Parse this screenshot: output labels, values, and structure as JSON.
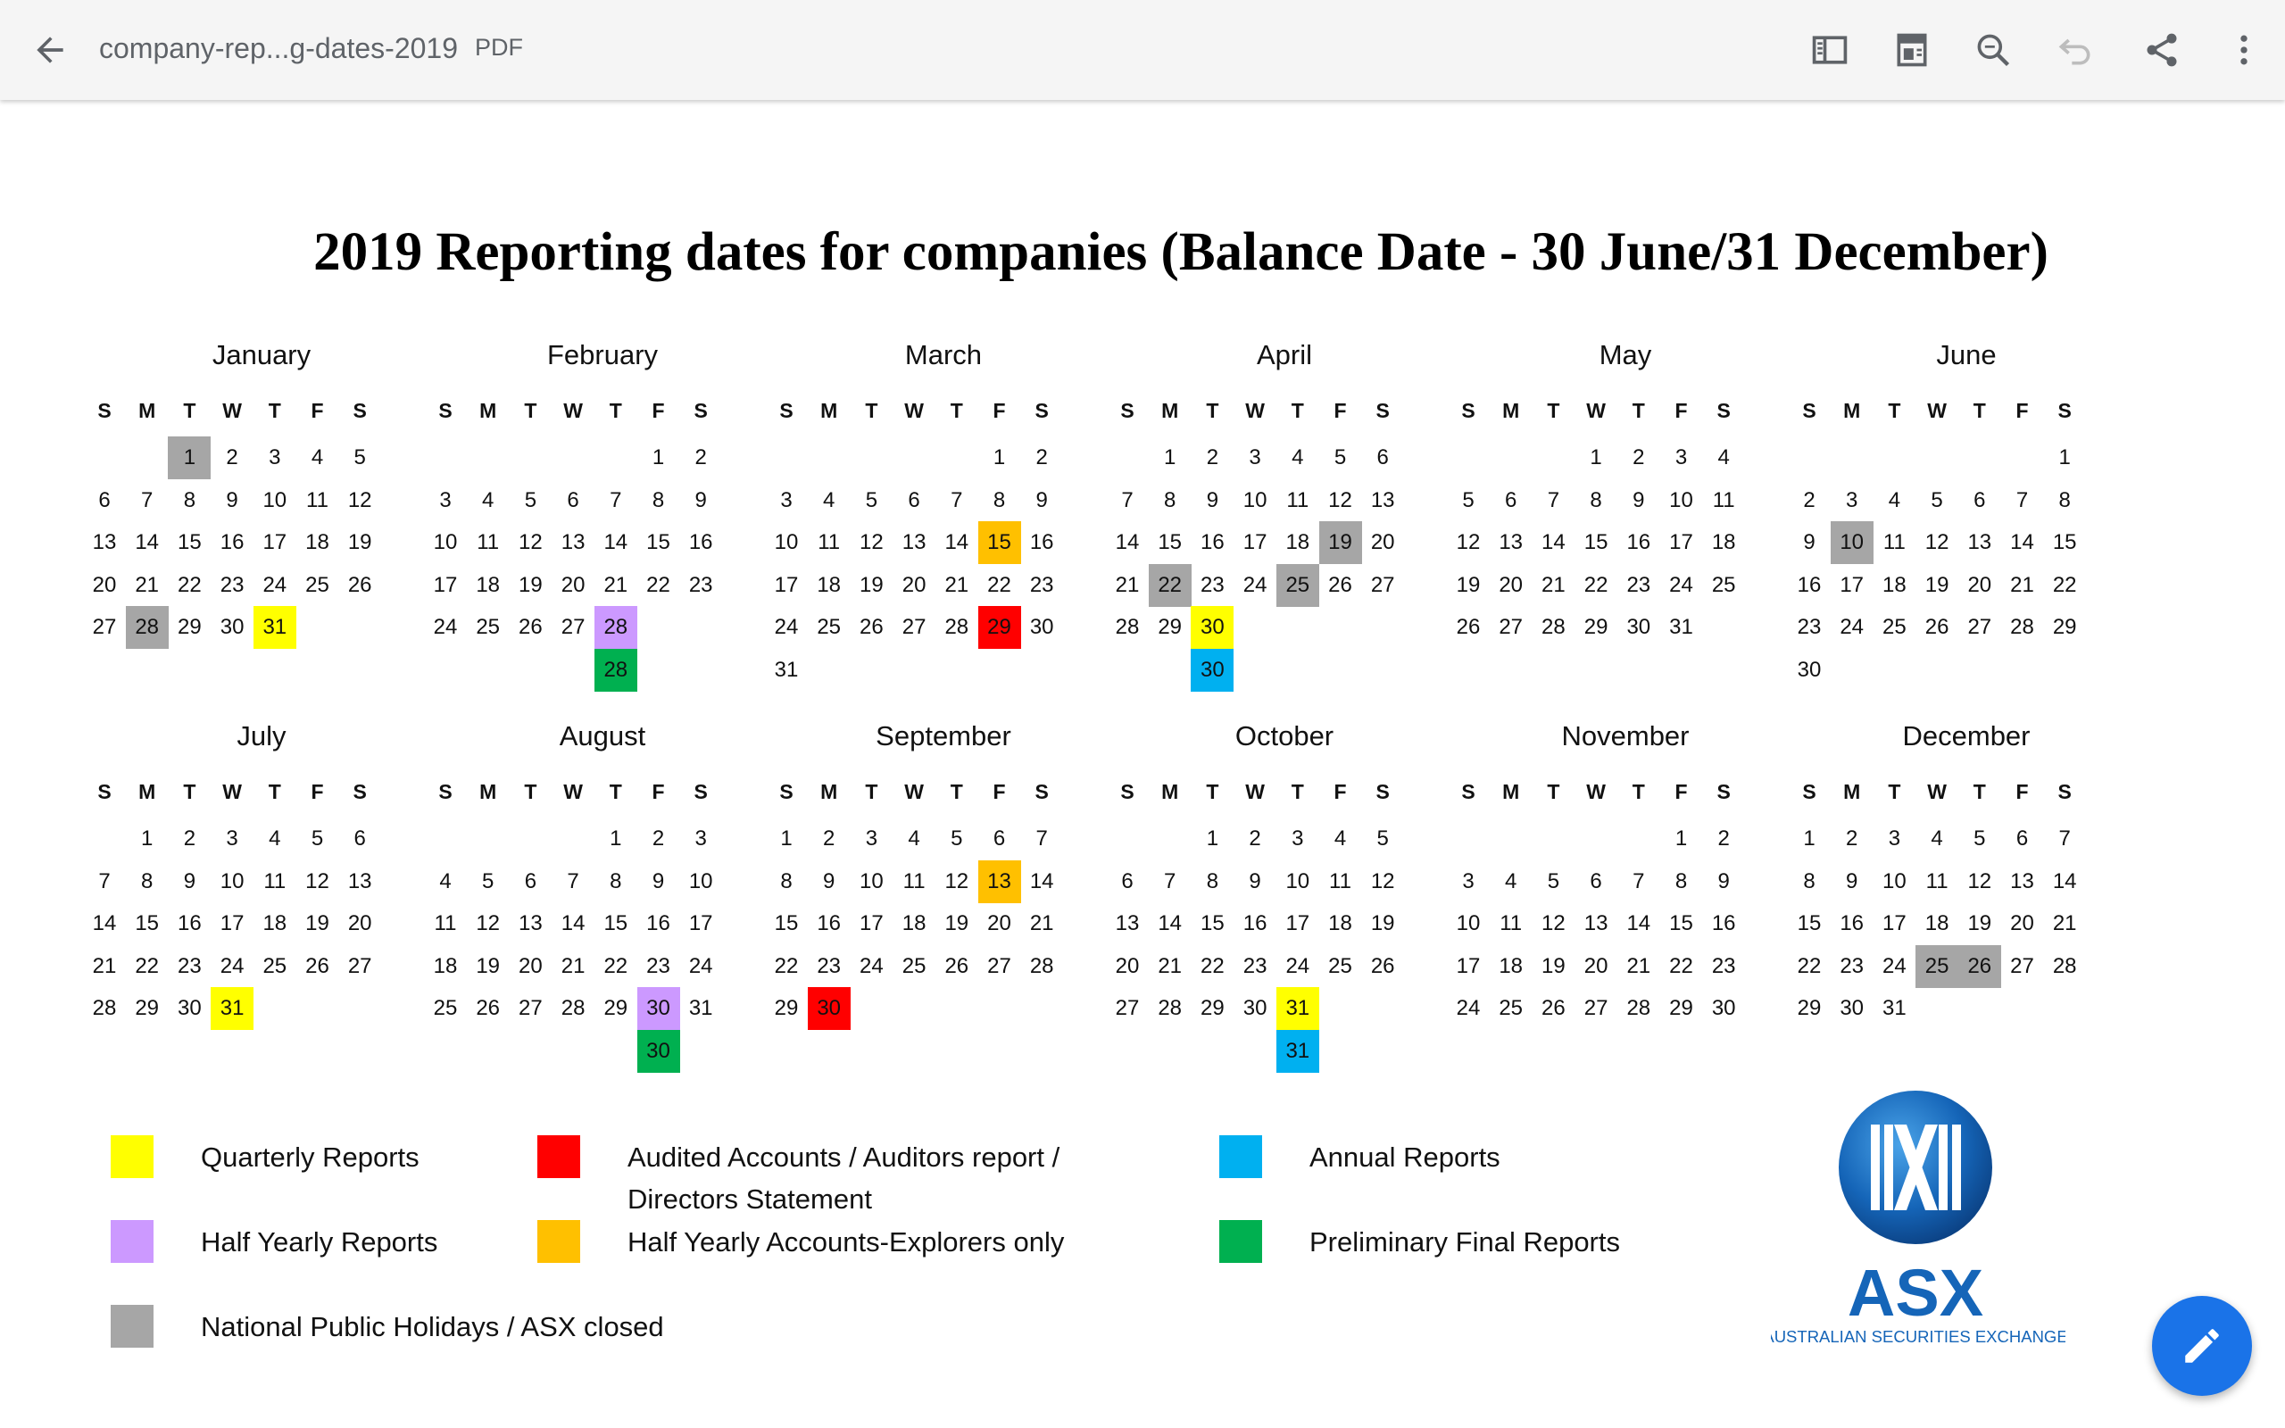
{
  "toolbar": {
    "doc_title": "company-rep...g-dates-2019",
    "doc_type": "PDF",
    "icons": [
      "back-arrow-icon",
      "sidebar-icon",
      "reading-mode-icon",
      "search-icon",
      "undo-icon",
      "share-icon",
      "more-options-icon"
    ]
  },
  "page_title": "2019 Reporting dates for companies (Balance Date - 30 June/31 December)",
  "weekdays": [
    "S",
    "M",
    "T",
    "W",
    "T",
    "F",
    "S"
  ],
  "colors": {
    "quarterly": "#ffff00",
    "half_yearly": "#cc99ff",
    "holiday": "#a6a6a6",
    "audited": "#ff0000",
    "explorers": "#ffc000",
    "annual": "#00b0f0",
    "preliminary": "#00b050"
  },
  "months": [
    {
      "name": "January",
      "start": 2,
      "days": 31,
      "marks": {
        "1": "holiday",
        "28": "holiday",
        "31": "quarterly"
      },
      "extra": []
    },
    {
      "name": "February",
      "start": 5,
      "days": 28,
      "marks": {
        "28": "half_yearly"
      },
      "extra": [
        {
          "day": 28,
          "type": "preliminary"
        }
      ]
    },
    {
      "name": "March",
      "start": 5,
      "days": 31,
      "marks": {
        "15": "explorers",
        "29": "audited"
      },
      "extra": []
    },
    {
      "name": "April",
      "start": 1,
      "days": 30,
      "marks": {
        "19": "holiday",
        "22": "holiday",
        "25": "holiday",
        "30": "quarterly"
      },
      "extra": [
        {
          "day": 30,
          "type": "annual"
        }
      ]
    },
    {
      "name": "May",
      "start": 3,
      "days": 31,
      "marks": {},
      "extra": []
    },
    {
      "name": "June",
      "start": 6,
      "days": 30,
      "marks": {
        "10": "holiday"
      },
      "extra": []
    },
    {
      "name": "July",
      "start": 1,
      "days": 31,
      "marks": {
        "31": "quarterly"
      },
      "extra": []
    },
    {
      "name": "August",
      "start": 4,
      "days": 31,
      "marks": {
        "30": "half_yearly"
      },
      "extra": [
        {
          "day": 30,
          "type": "preliminary"
        }
      ]
    },
    {
      "name": "September",
      "start": 0,
      "days": 30,
      "marks": {
        "13": "explorers",
        "30": "audited"
      },
      "extra": []
    },
    {
      "name": "October",
      "start": 2,
      "days": 31,
      "marks": {
        "31": "quarterly"
      },
      "extra": [
        {
          "day": 31,
          "type": "annual"
        }
      ]
    },
    {
      "name": "November",
      "start": 5,
      "days": 30,
      "marks": {},
      "extra": []
    },
    {
      "name": "December",
      "start": 0,
      "days": 31,
      "marks": {
        "25": "holiday",
        "26": "holiday"
      },
      "extra": []
    }
  ],
  "legend": {
    "quarterly": "Quarterly Reports",
    "half_yearly": "Half Yearly Reports",
    "holiday": "National Public Holidays / ASX closed",
    "audited_line1": "Audited Accounts / Auditors report /",
    "audited_line2": "Directors Statement",
    "explorers": "Half Yearly Accounts-Explorers only",
    "annual": "Annual Reports",
    "preliminary": "Preliminary Final Reports"
  },
  "logo": {
    "wordmark": "ASX",
    "tagline": "AUSTRALIAN SECURITIES EXCHANGE",
    "color": "#1565b8"
  },
  "fab": {
    "icon": "pencil-icon"
  }
}
